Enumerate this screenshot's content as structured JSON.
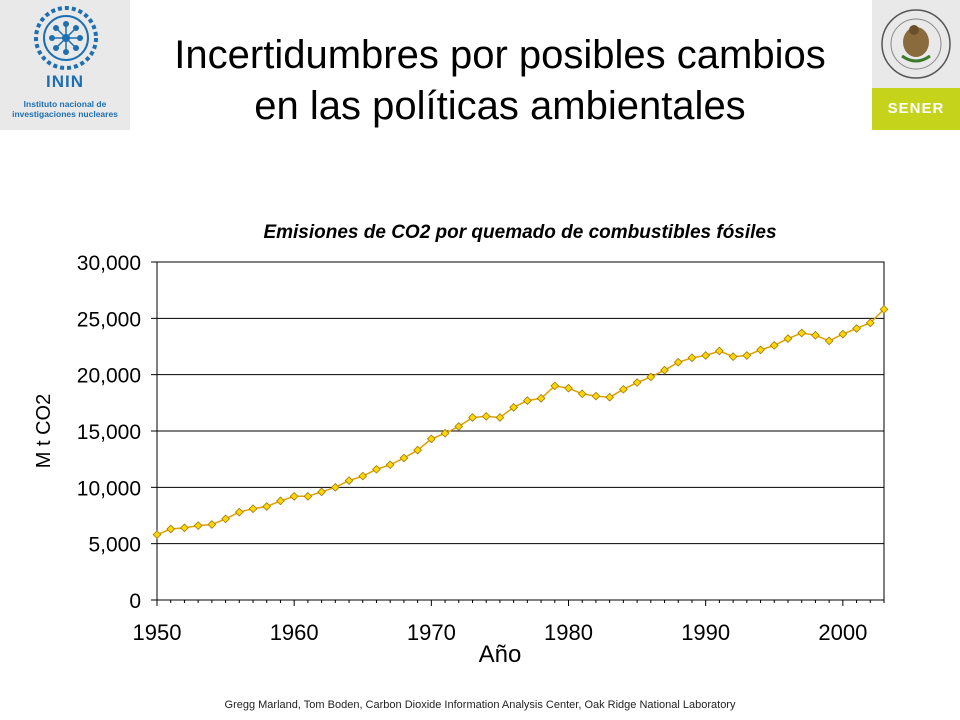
{
  "header": {
    "title": "Incertidumbres por posibles cambios en las políticas ambientales",
    "left_logo": {
      "name": "ININ",
      "subtitle": "Instituto nacional de investigaciones nucleares",
      "color": "#1e6fb2"
    },
    "right_logo": {
      "name": "SENER",
      "seal_text": "ESTADOS UNIDOS MEXICANOS",
      "color": "#c5d31b"
    }
  },
  "footer": {
    "credit": "Gregg Marland, Tom Boden,  Carbon Dioxide Information Analysis Center, Oak Ridge National Laboratory"
  },
  "chart_data": {
    "type": "line",
    "title": "Emisiones de CO2 por quemado de combustibles fósiles",
    "xlabel": "Año",
    "ylabel": "M t CO2",
    "xlim": [
      1950,
      2003
    ],
    "ylim": [
      0,
      30000
    ],
    "x_ticks": [
      1950,
      1960,
      1970,
      1980,
      1990,
      2000
    ],
    "y_ticks": [
      0,
      5000,
      10000,
      15000,
      20000,
      25000,
      30000
    ],
    "y_tick_labels": [
      "0",
      "5,000",
      "10,000",
      "15,000",
      "20,000",
      "25,000",
      "30,000"
    ],
    "grid": "horizontal",
    "marker": "diamond",
    "line_color": "#e0a000",
    "marker_color": "#ffd700",
    "series": [
      {
        "x": [
          1950,
          1951,
          1952,
          1953,
          1954,
          1955,
          1956,
          1957,
          1958,
          1959,
          1960,
          1961,
          1962,
          1963,
          1964,
          1965,
          1966,
          1967,
          1968,
          1969,
          1970,
          1971,
          1972,
          1973,
          1974,
          1975,
          1976,
          1977,
          1978,
          1979,
          1980,
          1981,
          1982,
          1983,
          1984,
          1985,
          1986,
          1987,
          1988,
          1989,
          1990,
          1991,
          1992,
          1993,
          1994,
          1995,
          1996,
          1997,
          1998,
          1999,
          2000,
          2001,
          2002,
          2003
        ],
        "values": [
          5800,
          6300,
          6400,
          6600,
          6700,
          7200,
          7800,
          8100,
          8300,
          8800,
          9200,
          9200,
          9600,
          10000,
          10600,
          11000,
          11600,
          12000,
          12600,
          13300,
          14300,
          14800,
          15400,
          16200,
          16300,
          16200,
          17100,
          17700,
          17900,
          19000,
          18800,
          18300,
          18100,
          18000,
          18700,
          19300,
          19800,
          20400,
          21100,
          21500,
          21700,
          22100,
          21600,
          21700,
          22200,
          22600,
          23200,
          23700,
          23500,
          23000,
          23600,
          24100,
          24600,
          25800
        ]
      }
    ]
  }
}
